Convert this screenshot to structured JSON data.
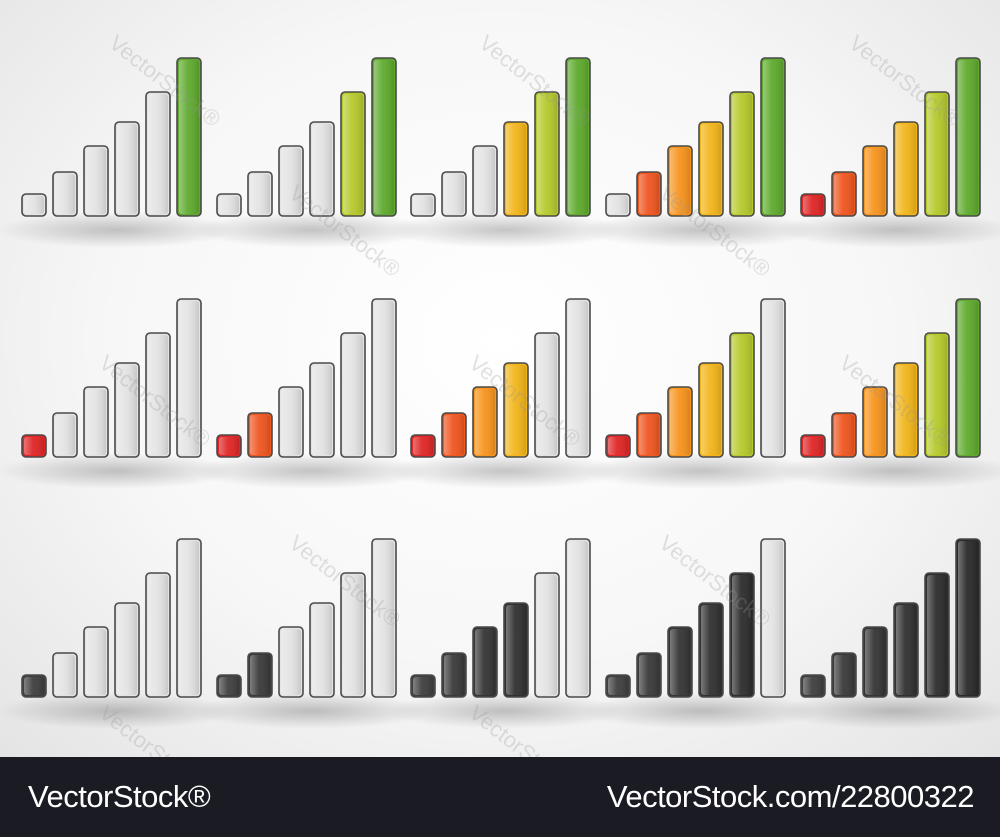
{
  "palettes": {
    "color": [
      "#e02626",
      "#ef5620",
      "#f7941e",
      "#f2b51a",
      "#b6c92c",
      "#5faa2e"
    ],
    "dark": [
      "#3f3f3f",
      "#3a3a3a",
      "#353535",
      "#313131",
      "#2d2d2d",
      "#2a2a2a"
    ]
  },
  "inactive_color": "#e3e3e3",
  "rows": [
    {
      "palette": "color",
      "indicators": [
        {
          "active_bars": [
            6
          ]
        },
        {
          "active_bars": [
            5,
            6
          ]
        },
        {
          "active_bars": [
            4,
            5,
            6
          ]
        },
        {
          "active_bars": [
            2,
            3,
            4,
            5,
            6
          ]
        },
        {
          "active_bars": [
            1,
            2,
            3,
            4,
            5,
            6
          ]
        }
      ]
    },
    {
      "palette": "color",
      "indicators": [
        {
          "active_bars": [
            1
          ]
        },
        {
          "active_bars": [
            1,
            2
          ]
        },
        {
          "active_bars": [
            1,
            2,
            3,
            4
          ]
        },
        {
          "active_bars": [
            1,
            2,
            3,
            4,
            5
          ]
        },
        {
          "active_bars": [
            1,
            2,
            3,
            4,
            5,
            6
          ]
        }
      ]
    },
    {
      "palette": "dark",
      "indicators": [
        {
          "active_bars": [
            1
          ]
        },
        {
          "active_bars": [
            1,
            2
          ]
        },
        {
          "active_bars": [
            1,
            2,
            3,
            4
          ]
        },
        {
          "active_bars": [
            1,
            2,
            3,
            4,
            5
          ]
        },
        {
          "active_bars": [
            1,
            2,
            3,
            4,
            5,
            6
          ]
        }
      ]
    }
  ],
  "watermark": {
    "text": "VectorStock",
    "mark": "®"
  },
  "footer": {
    "brand": "VectorStock®",
    "stock_id": "VectorStock.com/22800322"
  }
}
